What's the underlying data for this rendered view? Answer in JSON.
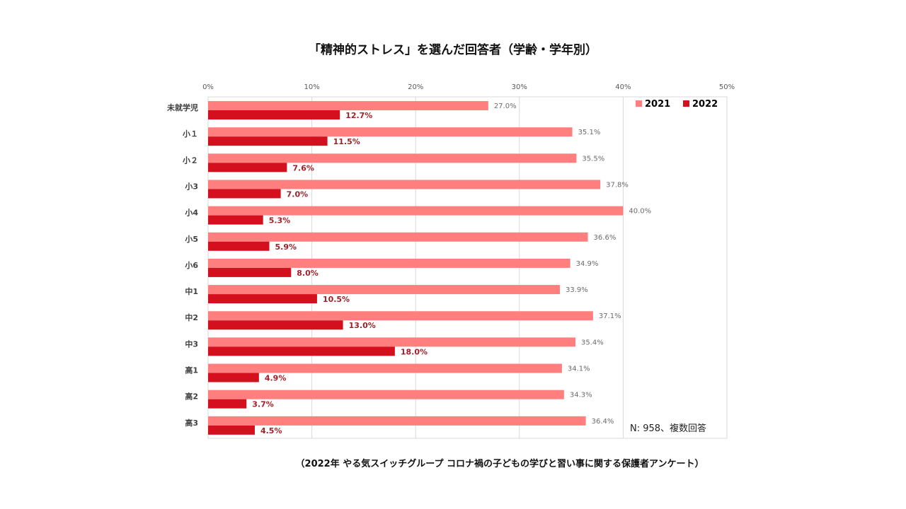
{
  "chart_data": {
    "type": "bar",
    "orientation": "horizontal",
    "title": "「精神的ストレス」を選んだ回答者（学齢・学年別）",
    "categories": [
      "未就学児",
      "小１",
      "小２",
      "小3",
      "小4",
      "小5",
      "小6",
      "中1",
      "中2",
      "中3",
      "高1",
      "高2",
      "高3"
    ],
    "series": [
      {
        "name": "2021",
        "color": "#FF7F7F",
        "values": [
          27.0,
          35.1,
          35.5,
          37.8,
          40.0,
          36.6,
          34.9,
          33.9,
          37.1,
          35.4,
          34.1,
          34.3,
          36.4
        ],
        "labels": [
          "27.0%",
          "35.1%",
          "35.5%",
          "37.8%",
          "40.0%",
          "36.6%",
          "34.9%",
          "33.9%",
          "37.1%",
          "35.4%",
          "34.1%",
          "34.3%",
          "36.4%"
        ]
      },
      {
        "name": "2022",
        "color": "#D40F1E",
        "values": [
          12.7,
          11.5,
          7.6,
          7.0,
          5.3,
          5.9,
          8.0,
          10.5,
          13.0,
          18.0,
          4.9,
          3.7,
          4.5
        ],
        "labels": [
          "12.7%",
          "11.5%",
          "7.6%",
          "7.0%",
          "5.3%",
          "5.9%",
          "8.0%",
          "10.5%",
          "13.0%",
          "18.0%",
          "4.9%",
          "3.7%",
          "4.5%"
        ]
      }
    ],
    "xlim": [
      0,
      50
    ],
    "xticks": [
      "0%",
      "10%",
      "20%",
      "30%",
      "40%",
      "50%"
    ],
    "xaxis_position": "top",
    "grid": true,
    "legend_position": "top-right",
    "xlabel": "",
    "ylabel": "",
    "annotation": "N: 958、複数回答",
    "source": "（2022年 やる気スイッチグループ コロナ禍の子どもの学びと習い事に関する保護者アンケート）"
  }
}
